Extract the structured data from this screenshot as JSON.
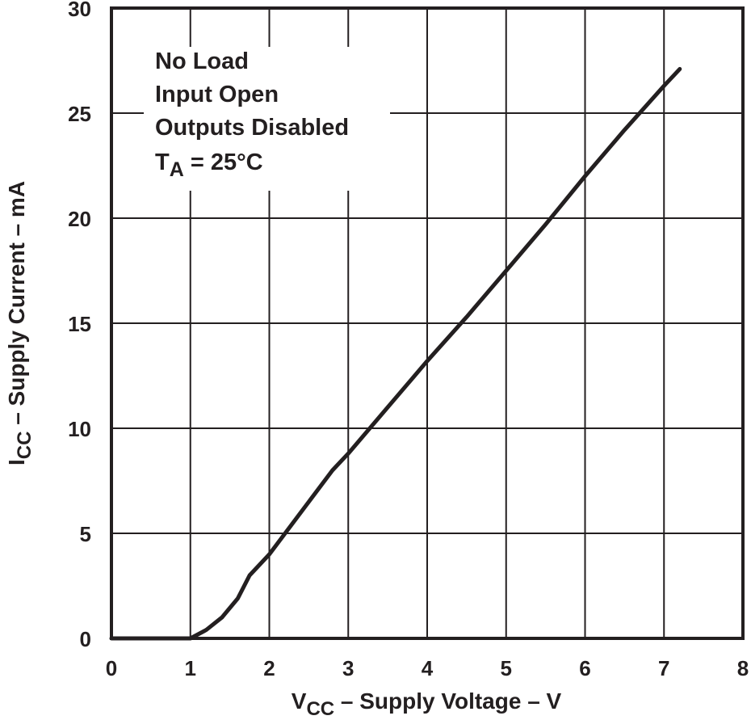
{
  "chart_data": {
    "type": "line",
    "title": "",
    "xlabel": "VCC – Supply Voltage – V",
    "xlabel_main": "V",
    "xlabel_sub": "CC",
    "xlabel_rest": " – Supply Voltage – V",
    "ylabel": "ICC – Supply Current – mA",
    "ylabel_main": "I",
    "ylabel_sub": "CC",
    "ylabel_rest": " – Supply Current – mA",
    "xlim": [
      0,
      8
    ],
    "ylim": [
      0,
      30
    ],
    "xticks": [
      "0",
      "1",
      "2",
      "3",
      "4",
      "5",
      "6",
      "7",
      "8"
    ],
    "yticks": [
      "0",
      "5",
      "10",
      "15",
      "20",
      "25",
      "30"
    ],
    "grid": true,
    "annotations": [
      "No Load",
      "Input Open",
      "Outputs Disabled",
      "TA = 25°C"
    ],
    "annotation_ta_main": "T",
    "annotation_ta_sub": "A",
    "annotation_ta_rest": " = 25°C",
    "series": [
      {
        "name": "ICC",
        "x": [
          0,
          0.5,
          1.0,
          1.2,
          1.4,
          1.6,
          1.75,
          2.0,
          2.4,
          2.8,
          3.0,
          3.5,
          4.0,
          4.5,
          5.0,
          5.5,
          6.0,
          6.5,
          7.0,
          7.2
        ],
        "values": [
          0,
          0,
          0,
          0.4,
          1.0,
          1.9,
          3.0,
          4.0,
          6.0,
          8.0,
          8.8,
          11.0,
          13.2,
          15.3,
          17.5,
          19.7,
          22.0,
          24.2,
          26.3,
          27.1
        ]
      }
    ]
  }
}
